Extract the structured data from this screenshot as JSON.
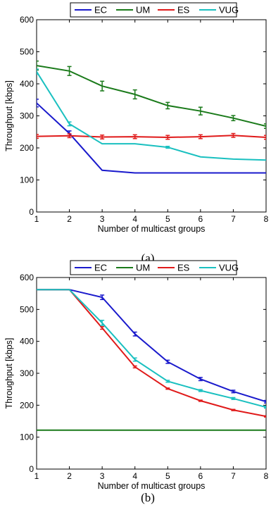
{
  "chart_data": [
    {
      "type": "line",
      "caption": "(a)",
      "xlabel": "Number of multicast groups",
      "ylabel": "Throughput [kbps]",
      "xlim": [
        1,
        8
      ],
      "ylim": [
        0,
        600
      ],
      "xticks": [
        1,
        2,
        3,
        4,
        5,
        6,
        7,
        8
      ],
      "yticks": [
        0,
        100,
        200,
        300,
        400,
        500,
        600
      ],
      "grid": false,
      "legend_position": "top-center",
      "x": [
        1,
        2,
        3,
        4,
        5,
        6,
        7,
        8
      ],
      "series": [
        {
          "name": "EC",
          "color": "#1a1acc",
          "values": [
            340,
            245,
            130,
            122,
            122,
            122,
            122,
            122
          ],
          "errors": [
            12,
            8,
            0,
            0,
            0,
            0,
            0,
            0
          ]
        },
        {
          "name": "UM",
          "color": "#1a7a1a",
          "values": [
            457,
            440,
            393,
            367,
            332,
            315,
            293,
            268
          ],
          "errors": [
            14,
            14,
            15,
            14,
            10,
            12,
            8,
            7
          ]
        },
        {
          "name": "ES",
          "color": "#e01a1a",
          "values": [
            236,
            238,
            234,
            235,
            233,
            235,
            239,
            233
          ],
          "errors": [
            6,
            6,
            6,
            6,
            6,
            6,
            6,
            6
          ]
        },
        {
          "name": "VUG",
          "color": "#1ac0c0",
          "values": [
            438,
            275,
            213,
            213,
            202,
            172,
            165,
            162
          ],
          "errors": [
            8,
            6,
            0,
            0,
            3,
            0,
            0,
            0
          ]
        }
      ]
    },
    {
      "type": "line",
      "caption": "(b)",
      "xlabel": "Number of multicast groups",
      "ylabel": "Throughput [kbps]",
      "xlim": [
        1,
        8
      ],
      "ylim": [
        0,
        600
      ],
      "xticks": [
        1,
        2,
        3,
        4,
        5,
        6,
        7,
        8
      ],
      "yticks": [
        0,
        100,
        200,
        300,
        400,
        500,
        600
      ],
      "grid": false,
      "legend_position": "top-center",
      "x": [
        1,
        2,
        3,
        4,
        5,
        6,
        7,
        8
      ],
      "series": [
        {
          "name": "EC",
          "color": "#1a1acc",
          "values": [
            562,
            562,
            538,
            423,
            336,
            282,
            243,
            211
          ],
          "errors": [
            0,
            0,
            7,
            6,
            5,
            5,
            4,
            4
          ]
        },
        {
          "name": "UM",
          "color": "#1a7a1a",
          "values": [
            122,
            122,
            122,
            122,
            122,
            122,
            122,
            122
          ],
          "errors": [
            0,
            0,
            0,
            0,
            0,
            0,
            0,
            0
          ]
        },
        {
          "name": "ES",
          "color": "#e01a1a",
          "values": [
            562,
            562,
            442,
            320,
            252,
            214,
            185,
            165
          ],
          "errors": [
            0,
            0,
            4,
            3,
            2,
            2,
            2,
            2
          ]
        },
        {
          "name": "VUG",
          "color": "#1ac0c0",
          "values": [
            562,
            562,
            458,
            343,
            275,
            246,
            221,
            194
          ],
          "errors": [
            0,
            0,
            8,
            5,
            3,
            3,
            3,
            3
          ]
        }
      ]
    }
  ]
}
